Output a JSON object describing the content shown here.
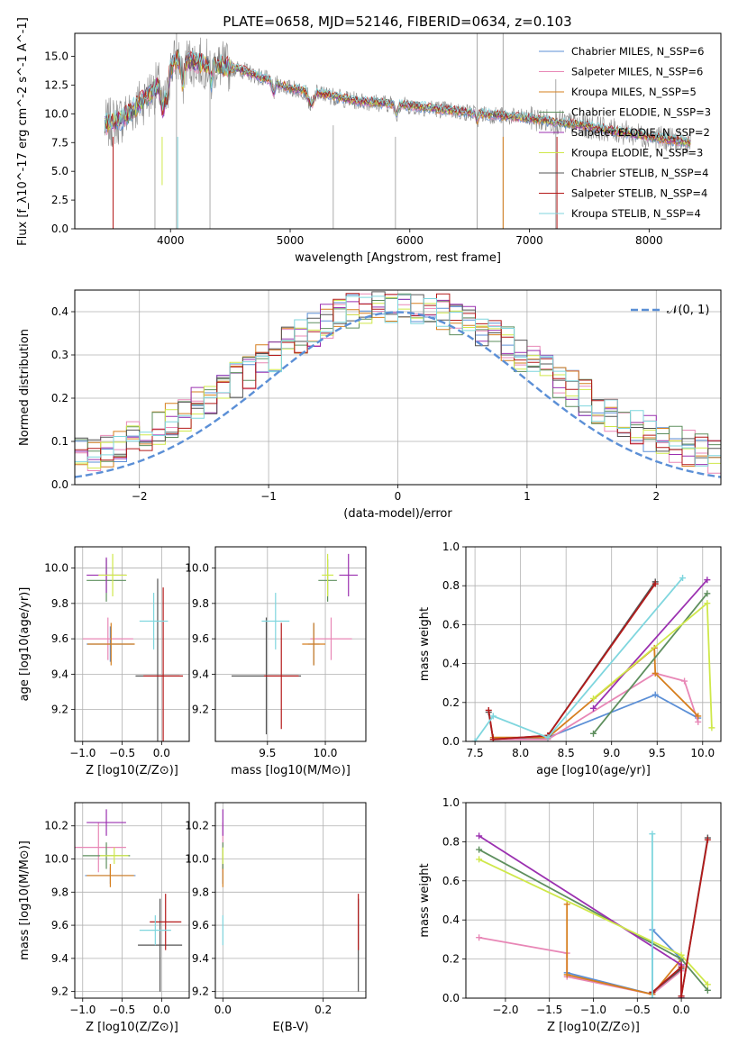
{
  "title": "PLATE=0658, MJD=52146, FIBERID=0634, z=0.103",
  "colors": {
    "cm_miles": "#5b8fd6",
    "sp_miles": "#e887b6",
    "kr_miles": "#d67f1e",
    "cm_elodie": "#5e8f5e",
    "sp_elodie": "#9b30b0",
    "kr_elodie": "#cfe84a",
    "cm_stelib": "#555555",
    "sp_stelib": "#b41a1a",
    "kr_stelib": "#7fd6de",
    "data": "#8a8a8a",
    "grid": "#b0b0b0",
    "normal": "#5b8fd6"
  },
  "chart_data": [
    {
      "id": "spectrum",
      "type": "line",
      "xlabel": "wavelength [Angstrom, rest frame]",
      "ylabel": "Flux [f_λ10^-17 erg cm^-2 s^-1 A^-1]",
      "xlim": [
        3200,
        8600
      ],
      "ylim": [
        0,
        17
      ],
      "xticks": [
        4000,
        5000,
        6000,
        7000,
        8000
      ],
      "yticks": [
        0.0,
        2.5,
        5.0,
        7.5,
        10.0,
        12.5,
        15.0
      ],
      "grid": false,
      "legend_position": "top-right",
      "legend": [
        {
          "label": "Chabrier MILES, N_SSP=6",
          "color": "cm_miles"
        },
        {
          "label": "Salpeter MILES, N_SSP=6",
          "color": "sp_miles"
        },
        {
          "label": "Kroupa MILES, N_SSP=5",
          "color": "kr_miles"
        },
        {
          "label": "Chabrier ELODIE, N_SSP=3",
          "color": "cm_elodie"
        },
        {
          "label": "Salpeter ELODIE, N_SSP=2",
          "color": "sp_elodie"
        },
        {
          "label": "Kroupa ELODIE, N_SSP=3",
          "color": "kr_elodie"
        },
        {
          "label": "Chabrier STELIB, N_SSP=4",
          "color": "cm_stelib"
        },
        {
          "label": "Salpeter STELIB, N_SSP=4",
          "color": "sp_stelib"
        },
        {
          "label": "Kroupa STELIB, N_SSP=4",
          "color": "kr_stelib"
        }
      ],
      "continuum": {
        "x": [
          3450,
          3600,
          3800,
          3950,
          4050,
          4200,
          4400,
          4600,
          4800,
          5000,
          5200,
          5500,
          5800,
          6100,
          6500,
          7000,
          7500,
          8000,
          8350
        ],
        "y": [
          9.0,
          9.6,
          11.5,
          13.0,
          14.8,
          14.5,
          14.2,
          13.8,
          13.0,
          12.2,
          11.9,
          11.2,
          10.9,
          10.6,
          10.1,
          9.6,
          8.9,
          8.0,
          7.5
        ]
      }
    },
    {
      "id": "residuals",
      "type": "line",
      "xlabel": "(data-model)/error",
      "ylabel": "Normed distribution",
      "xlim": [
        -2.5,
        2.5
      ],
      "ylim": [
        0,
        0.45
      ],
      "xticks": [
        -2,
        -1,
        0,
        1,
        2
      ],
      "yticks": [
        0.0,
        0.1,
        0.2,
        0.3,
        0.4
      ],
      "grid": true,
      "legend_position": "top-right",
      "legend": [
        {
          "label": "𝒩(0, 1)",
          "color": "normal"
        }
      ]
    },
    {
      "id": "age_vs_Z",
      "type": "scatter",
      "xlabel": "Z [log10(Z/Z⊙)]",
      "ylabel": "age [log10(age/yr)]",
      "xlim": [
        -1.1,
        0.35
      ],
      "ylim": [
        9.02,
        10.12
      ],
      "xticks": [
        -1.0,
        -0.5,
        0.0
      ],
      "xtick_labels": [
        "−1.0",
        "−0.5",
        "0.0"
      ],
      "yticks": [
        9.2,
        9.4,
        9.6,
        9.8,
        10.0
      ],
      "grid": true,
      "points": [
        {
          "c": "cm_miles",
          "x": -0.65,
          "xe": 0.3,
          "y": 9.57,
          "ye": 0.1
        },
        {
          "c": "sp_miles",
          "x": -0.68,
          "xe": 0.32,
          "y": 9.6,
          "ye": 0.12
        },
        {
          "c": "kr_miles",
          "x": -0.64,
          "xe": 0.3,
          "y": 9.57,
          "ye": 0.12
        },
        {
          "c": "cm_elodie",
          "x": -0.7,
          "xe": 0.25,
          "y": 9.93,
          "ye": 0.12
        },
        {
          "c": "sp_elodie",
          "x": -0.7,
          "xe": 0.25,
          "y": 9.96,
          "ye": 0.1
        },
        {
          "c": "kr_elodie",
          "x": -0.62,
          "xe": 0.18,
          "y": 9.96,
          "ye": 0.12
        },
        {
          "c": "cm_stelib",
          "x": -0.05,
          "xe": 0.28,
          "y": 9.39,
          "ye": 0.55
        },
        {
          "c": "sp_stelib",
          "x": 0.02,
          "xe": 0.25,
          "y": 9.39,
          "ye": 0.5
        },
        {
          "c": "kr_stelib",
          "x": -0.1,
          "xe": 0.18,
          "y": 9.7,
          "ye": 0.16
        }
      ]
    },
    {
      "id": "age_vs_mass",
      "type": "scatter",
      "xlabel": "mass [log10(M/M⊙)]",
      "ylabel": "",
      "xlim": [
        9.05,
        10.35
      ],
      "ylim": [
        9.02,
        10.12
      ],
      "xticks": [
        9.5,
        10.0
      ],
      "yticks": [
        9.2,
        9.4,
        9.6,
        9.8,
        10.0
      ],
      "grid": true,
      "points": [
        {
          "c": "cm_miles",
          "x": 9.9,
          "xe": 0.05,
          "y": 9.57,
          "ye": 0.12
        },
        {
          "c": "sp_miles",
          "x": 10.05,
          "xe": 0.18,
          "y": 9.6,
          "ye": 0.12
        },
        {
          "c": "kr_miles",
          "x": 9.9,
          "xe": 0.1,
          "y": 9.57,
          "ye": 0.12
        },
        {
          "c": "cm_elodie",
          "x": 10.02,
          "xe": 0.08,
          "y": 9.93,
          "ye": 0.12
        },
        {
          "c": "sp_elodie",
          "x": 10.2,
          "xe": 0.08,
          "y": 9.96,
          "ye": 0.12
        },
        {
          "c": "kr_elodie",
          "x": 10.02,
          "xe": 0.05,
          "y": 9.96,
          "ye": 0.12
        },
        {
          "c": "cm_stelib",
          "x": 9.49,
          "xe": 0.3,
          "y": 9.39,
          "ye": 0.33
        },
        {
          "c": "sp_stelib",
          "x": 9.62,
          "xe": 0.15,
          "y": 9.39,
          "ye": 0.3
        },
        {
          "c": "kr_stelib",
          "x": 9.57,
          "xe": 0.12,
          "y": 9.7,
          "ye": 0.16
        }
      ]
    },
    {
      "id": "mass_weight_vs_age",
      "type": "line",
      "xlabel": "age [log10(age/yr)]",
      "ylabel": "mass weight",
      "xlim": [
        7.4,
        10.2
      ],
      "ylim": [
        0,
        1.0
      ],
      "xticks": [
        7.5,
        8.0,
        8.5,
        9.0,
        9.5,
        10.0
      ],
      "yticks": [
        0.0,
        0.2,
        0.4,
        0.6,
        0.8,
        1.0
      ],
      "grid": true,
      "series": [
        {
          "c": "cm_miles",
          "x": [
            7.7,
            8.3,
            9.48,
            9.95
          ],
          "y": [
            0.01,
            0.02,
            0.24,
            0.12
          ]
        },
        {
          "c": "sp_miles",
          "x": [
            7.7,
            8.3,
            9.48,
            9.8,
            9.95
          ],
          "y": [
            0.01,
            0.01,
            0.35,
            0.31,
            0.1
          ]
        },
        {
          "c": "kr_miles",
          "x": [
            7.7,
            8.3,
            9.47,
            9.48,
            9.95
          ],
          "y": [
            0.02,
            0.02,
            0.48,
            0.35,
            0.13
          ]
        },
        {
          "c": "cm_elodie",
          "x": [
            8.8,
            10.05
          ],
          "y": [
            0.04,
            0.76
          ]
        },
        {
          "c": "sp_elodie",
          "x": [
            8.8,
            10.05
          ],
          "y": [
            0.17,
            0.83
          ]
        },
        {
          "c": "kr_elodie",
          "x": [
            8.8,
            10.05,
            10.1
          ],
          "y": [
            0.22,
            0.71,
            0.07
          ]
        },
        {
          "c": "cm_stelib",
          "x": [
            7.65,
            7.7,
            8.3,
            9.48
          ],
          "y": [
            0.15,
            0.01,
            0.03,
            0.82
          ]
        },
        {
          "c": "sp_stelib",
          "x": [
            7.65,
            7.7,
            8.3,
            9.48
          ],
          "y": [
            0.16,
            0.01,
            0.03,
            0.81
          ]
        },
        {
          "c": "kr_stelib",
          "x": [
            7.5,
            7.7,
            8.3,
            9.78
          ],
          "y": [
            0.0,
            0.13,
            0.02,
            0.84
          ]
        }
      ]
    },
    {
      "id": "mass_vs_Z",
      "type": "scatter",
      "xlabel": "Z [log10(Z/Z⊙)]",
      "ylabel": "mass [log10(M/M⊙)]",
      "xlim": [
        -1.1,
        0.35
      ],
      "ylim": [
        9.16,
        10.34
      ],
      "xticks": [
        -1.0,
        -0.5,
        0.0
      ],
      "xtick_labels": [
        "−1.0",
        "−0.5",
        "0.0"
      ],
      "yticks": [
        9.2,
        9.4,
        9.6,
        9.8,
        10.0,
        10.2
      ],
      "grid": true,
      "points": [
        {
          "c": "cm_miles",
          "x": -0.65,
          "xe": 0.32,
          "y": 9.9,
          "ye": 0.05
        },
        {
          "c": "sp_miles",
          "x": -0.8,
          "xe": 0.35,
          "y": 10.07,
          "ye": 0.15
        },
        {
          "c": "kr_miles",
          "x": -0.65,
          "xe": 0.3,
          "y": 9.9,
          "ye": 0.07
        },
        {
          "c": "cm_elodie",
          "x": -0.7,
          "xe": 0.3,
          "y": 10.02,
          "ye": 0.08
        },
        {
          "c": "sp_elodie",
          "x": -0.7,
          "xe": 0.25,
          "y": 10.22,
          "ye": 0.08
        },
        {
          "c": "kr_elodie",
          "x": -0.6,
          "xe": 0.18,
          "y": 10.02,
          "ye": 0.05
        },
        {
          "c": "cm_stelib",
          "x": -0.02,
          "xe": 0.28,
          "y": 9.48,
          "ye": 0.28
        },
        {
          "c": "sp_stelib",
          "x": 0.05,
          "xe": 0.2,
          "y": 9.62,
          "ye": 0.17
        },
        {
          "c": "kr_stelib",
          "x": -0.08,
          "xe": 0.2,
          "y": 9.57,
          "ye": 0.09
        }
      ]
    },
    {
      "id": "mass_vs_ebv",
      "type": "scatter",
      "xlabel": "E(B-V)",
      "ylabel": "",
      "xlim": [
        -0.015,
        0.285
      ],
      "ylim": [
        9.16,
        10.34
      ],
      "xticks": [
        0.0,
        0.2
      ],
      "xtick_labels": [
        "0.0",
        "0.2"
      ],
      "yticks": [
        9.2,
        9.4,
        9.6,
        9.8,
        10.0,
        10.2
      ],
      "grid": true,
      "points": [
        {
          "c": "cm_miles",
          "x": 0.0,
          "y": 9.9,
          "ye": 0.05
        },
        {
          "c": "sp_miles",
          "x": 0.0,
          "y": 10.07,
          "ye": 0.15
        },
        {
          "c": "kr_miles",
          "x": 0.0,
          "y": 9.9,
          "ye": 0.07
        },
        {
          "c": "cm_elodie",
          "x": 0.0,
          "y": 10.02,
          "ye": 0.08
        },
        {
          "c": "sp_elodie",
          "x": 0.0,
          "y": 10.22,
          "ye": 0.08
        },
        {
          "c": "kr_elodie",
          "x": 0.0,
          "y": 10.02,
          "ye": 0.05
        },
        {
          "c": "cm_stelib",
          "x": 0.27,
          "y": 9.48,
          "ye": 0.28
        },
        {
          "c": "sp_stelib",
          "x": 0.27,
          "y": 9.62,
          "ye": 0.17
        },
        {
          "c": "kr_stelib",
          "x": 0.0,
          "y": 9.57,
          "ye": 0.09
        }
      ]
    },
    {
      "id": "mass_weight_vs_Z",
      "type": "line",
      "xlabel": "Z [log10(Z/Z⊙)]",
      "ylabel": "mass weight",
      "xlim": [
        -2.45,
        0.45
      ],
      "ylim": [
        0,
        1.0
      ],
      "xticks": [
        -2.0,
        -1.5,
        -1.0,
        -0.5,
        0.0
      ],
      "xtick_labels": [
        "−2.0",
        "−1.5",
        "−1.0",
        "−0.5",
        "0.0"
      ],
      "yticks": [
        0.0,
        0.2,
        0.4,
        0.6,
        0.8,
        1.0
      ],
      "grid": true,
      "series": [
        {
          "c": "cm_miles",
          "x": [
            -1.3,
            -0.33,
            -0.33,
            0.0,
            0.0
          ],
          "y": [
            0.13,
            0.02,
            0.35,
            0.2,
            0.0
          ]
        },
        {
          "c": "sp_miles",
          "x": [
            -2.3,
            -1.3,
            -1.3,
            -0.33,
            0.0
          ],
          "y": [
            0.31,
            0.23,
            0.11,
            0.02,
            0.14
          ]
        },
        {
          "c": "kr_miles",
          "x": [
            -1.3,
            -1.3,
            -0.33,
            0.0,
            0.0
          ],
          "y": [
            0.48,
            0.12,
            0.02,
            0.2,
            0.0
          ]
        },
        {
          "c": "cm_elodie",
          "x": [
            -2.3,
            0.0,
            0.3
          ],
          "y": [
            0.76,
            0.2,
            0.04
          ]
        },
        {
          "c": "sp_elodie",
          "x": [
            -2.3,
            0.0,
            0.0
          ],
          "y": [
            0.83,
            0.17,
            0.0
          ]
        },
        {
          "c": "kr_elodie",
          "x": [
            -2.3,
            0.0,
            0.3
          ],
          "y": [
            0.71,
            0.22,
            0.07
          ]
        },
        {
          "c": "cm_stelib",
          "x": [
            -0.33,
            0.0,
            0.0,
            0.3
          ],
          "y": [
            0.03,
            0.15,
            0.01,
            0.82
          ]
        },
        {
          "c": "sp_stelib",
          "x": [
            -0.33,
            0.0,
            0.0,
            0.3
          ],
          "y": [
            0.03,
            0.16,
            0.01,
            0.81
          ]
        },
        {
          "c": "kr_stelib",
          "x": [
            -0.33,
            -0.33
          ],
          "y": [
            0.0,
            0.84
          ]
        }
      ]
    }
  ]
}
